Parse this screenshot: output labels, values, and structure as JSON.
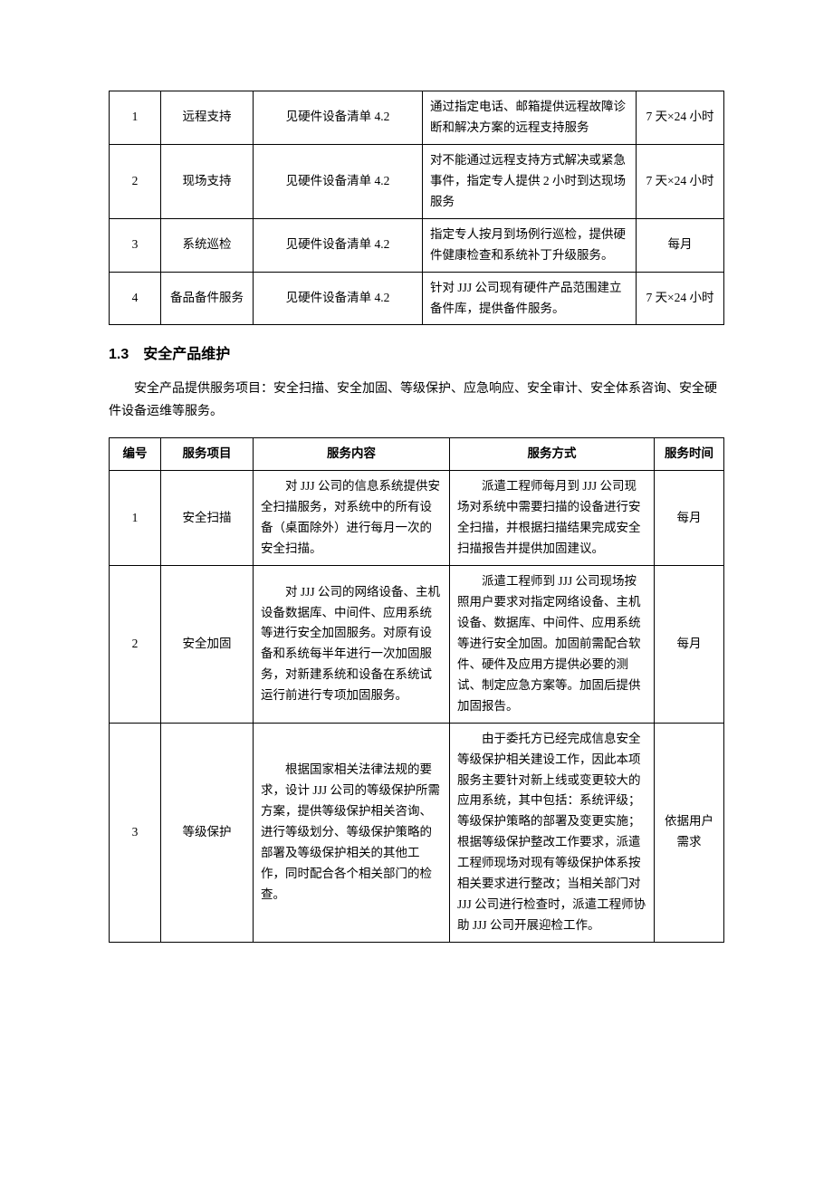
{
  "table1": {
    "rows": [
      {
        "num": "1",
        "item": "远程支持",
        "content": "见硬件设备清单 4.2",
        "method": "通过指定电话、邮箱提供远程故障诊断和解决方案的远程支持服务",
        "time": "7 天×24 小时"
      },
      {
        "num": "2",
        "item": "现场支持",
        "content": "见硬件设备清单 4.2",
        "method": "对不能通过远程支持方式解决或紧急事件，指定专人提供 2 小时到达现场服务",
        "time": "7 天×24 小时"
      },
      {
        "num": "3",
        "item": "系统巡检",
        "content": "见硬件设备清单 4.2",
        "method": "指定专人按月到场例行巡检，提供硬件健康检查和系统补丁升级服务。",
        "time": "每月"
      },
      {
        "num": "4",
        "item": "备品备件服务",
        "content": "见硬件设备清单 4.2",
        "method": "针对 JJJ 公司现有硬件产品范围建立备件库，提供备件服务。",
        "time": "7 天×24 小时"
      }
    ]
  },
  "section": {
    "heading": "1.3　安全产品维护",
    "intro": "安全产品提供服务项目：安全扫描、安全加固、等级保护、应急响应、安全审计、安全体系咨询、安全硬件设备运维等服务。"
  },
  "table2": {
    "headers": {
      "num": "编号",
      "item": "服务项目",
      "content": "服务内容",
      "method": "服务方式",
      "time": "服务时间"
    },
    "rows": [
      {
        "num": "1",
        "item": "安全扫描",
        "content": "　　对 JJJ 公司的信息系统提供安全扫描服务，对系统中的所有设备（桌面除外）进行每月一次的安全扫描。",
        "method": "　　派遣工程师每月到 JJJ 公司现场对系统中需要扫描的设备进行安全扫描，并根据扫描结果完成安全扫描报告并提供加固建议。",
        "time": "每月"
      },
      {
        "num": "2",
        "item": "安全加固",
        "content": "　　对 JJJ 公司的网络设备、主机设备数据库、中间件、应用系统等进行安全加固服务。对原有设备和系统每半年进行一次加固服务，对新建系统和设备在系统试运行前进行专项加固服务。",
        "method": "　　派遣工程师到 JJJ 公司现场按照用户要求对指定网络设备、主机设备、数据库、中间件、应用系统等进行安全加固。加固前需配合软件、硬件及应用方提供必要的测试、制定应急方案等。加固后提供加固报告。",
        "time": "每月"
      },
      {
        "num": "3",
        "item": "等级保护",
        "content": "　　根据国家相关法律法规的要求，设计 JJJ 公司的等级保护所需方案，提供等级保护相关咨询、进行等级划分、等级保护策略的部署及等级保护相关的其他工作，同时配合各个相关部门的检查。",
        "method": "　　由于委托方已经完成信息安全等级保护相关建设工作，因此本项服务主要针对新上线或变更较大的应用系统，其中包括：系统评级；等级保护策略的部署及变更实施；根据等级保护整改工作要求，派遣工程师现场对现有等级保护体系按相关要求进行整改；当相关部门对 JJJ 公司进行检查时，派遣工程师协助 JJJ 公司开展迎检工作。",
        "time": "依据用户需求"
      }
    ]
  }
}
